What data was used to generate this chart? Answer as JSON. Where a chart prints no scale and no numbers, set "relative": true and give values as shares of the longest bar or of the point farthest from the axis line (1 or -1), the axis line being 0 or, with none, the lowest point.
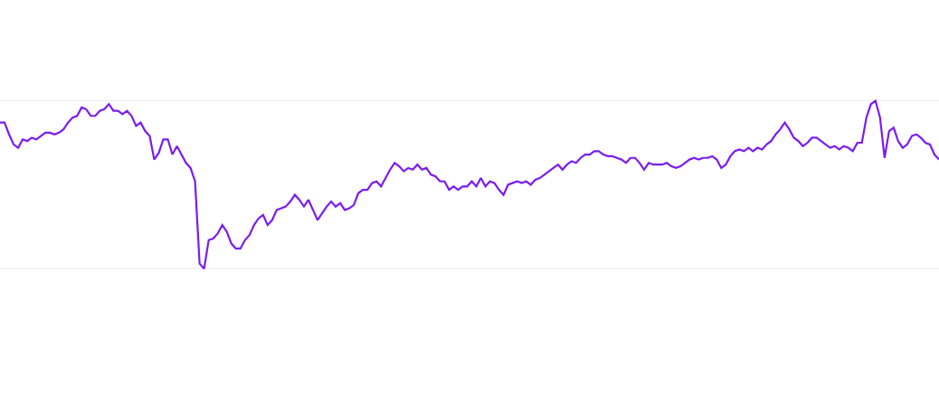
{
  "chart_data": {
    "type": "line",
    "relative": true,
    "grid": "y",
    "color": "#7b1cf0",
    "categories": [
      null,
      null,
      null,
      null,
      null,
      null,
      null,
      null,
      null,
      null,
      null,
      null,
      null,
      null,
      null,
      null,
      null,
      null,
      null,
      null,
      null,
      null,
      null,
      null,
      null,
      null,
      null,
      null,
      null,
      null,
      null,
      null,
      null,
      null,
      null,
      null,
      null,
      null,
      null,
      null,
      null,
      null,
      null,
      null,
      null,
      null,
      null,
      null,
      null,
      null,
      null,
      null,
      null,
      null,
      null,
      null,
      null,
      null,
      null,
      null,
      null,
      null,
      null,
      null,
      null,
      null,
      null,
      null,
      null,
      null,
      null,
      null,
      null,
      null,
      null,
      null,
      null,
      null,
      null,
      null,
      null,
      null,
      null,
      null,
      null,
      null,
      null,
      null,
      null,
      null,
      null,
      null,
      null,
      null,
      null,
      null,
      null,
      null,
      null,
      null,
      null,
      null,
      null,
      null,
      null,
      null,
      null,
      null,
      null,
      null,
      null,
      null,
      null,
      null,
      null,
      null,
      null,
      null,
      null,
      null,
      null,
      null,
      null,
      null,
      null,
      null,
      null,
      null,
      null,
      null,
      null,
      null,
      null,
      null,
      null,
      null,
      null,
      null,
      null,
      null,
      null,
      null,
      null,
      null,
      null,
      null,
      null,
      null,
      null,
      null,
      null,
      null,
      null,
      null,
      null,
      null,
      null,
      null,
      null,
      null,
      null,
      null,
      null,
      null,
      null,
      null,
      null,
      null,
      null,
      null,
      null,
      null,
      null,
      null,
      null,
      null,
      null,
      null,
      null,
      null,
      null,
      null,
      null,
      null,
      null,
      null,
      null,
      null,
      null,
      null,
      null,
      null,
      null,
      null,
      null,
      null,
      null,
      null,
      null,
      null,
      null,
      null,
      null,
      null,
      null,
      null,
      null,
      null
    ],
    "values": [
      0.87,
      0.87,
      0.8,
      0.74,
      0.72,
      0.77,
      0.76,
      0.78,
      0.77,
      0.79,
      0.81,
      0.81,
      0.8,
      0.81,
      0.83,
      0.87,
      0.9,
      0.91,
      0.96,
      0.95,
      0.91,
      0.91,
      0.94,
      0.95,
      0.98,
      0.94,
      0.94,
      0.92,
      0.94,
      0.91,
      0.85,
      0.87,
      0.82,
      0.79,
      0.65,
      0.69,
      0.77,
      0.77,
      0.68,
      0.73,
      0.68,
      0.63,
      0.6,
      0.52,
      0.03,
      0,
      0.17,
      0.18,
      0.21,
      0.26,
      0.22,
      0.15,
      0.12,
      0.12,
      0.17,
      0.2,
      0.26,
      0.3,
      0.32,
      0.26,
      0.29,
      0.35,
      0.36,
      0.37,
      0.4,
      0.44,
      0.41,
      0.37,
      0.41,
      0.35,
      0.29,
      0.33,
      0.37,
      0.4,
      0.37,
      0.39,
      0.35,
      0.36,
      0.38,
      0.45,
      0.47,
      0.47,
      0.51,
      0.52,
      0.49,
      0.54,
      0.59,
      0.63,
      0.61,
      0.58,
      0.6,
      0.59,
      0.62,
      0.59,
      0.6,
      0.56,
      0.55,
      0.52,
      0.52,
      0.47,
      0.49,
      0.47,
      0.49,
      0.49,
      0.52,
      0.49,
      0.54,
      0.49,
      0.52,
      0.51,
      0.47,
      0.44,
      0.5,
      0.51,
      0.52,
      0.51,
      0.52,
      0.5,
      0.53,
      0.54,
      0.56,
      0.58,
      0.6,
      0.62,
      0.59,
      0.62,
      0.64,
      0.63,
      0.66,
      0.68,
      0.68,
      0.7,
      0.7,
      0.68,
      0.67,
      0.67,
      0.66,
      0.65,
      0.63,
      0.66,
      0.66,
      0.63,
      0.59,
      0.63,
      0.62,
      0.62,
      0.62,
      0.63,
      0.61,
      0.6,
      0.61,
      0.63,
      0.65,
      0.66,
      0.65,
      0.66,
      0.66,
      0.67,
      0.65,
      0.6,
      0.62,
      0.67,
      0.7,
      0.71,
      0.7,
      0.72,
      0.7,
      0.72,
      0.71,
      0.74,
      0.76,
      0.8,
      0.83,
      0.87,
      0.83,
      0.78,
      0.76,
      0.73,
      0.75,
      0.78,
      0.78,
      0.76,
      0.74,
      0.72,
      0.73,
      0.71,
      0.73,
      0.72,
      0.7,
      0.75,
      0.75,
      0.9,
      0.98,
      1,
      0.9,
      0.66,
      0.82,
      0.84,
      0.76,
      0.72,
      0.74,
      0.79,
      0.8,
      0.78,
      0.75,
      0.74,
      0.68,
      0.65
    ]
  }
}
